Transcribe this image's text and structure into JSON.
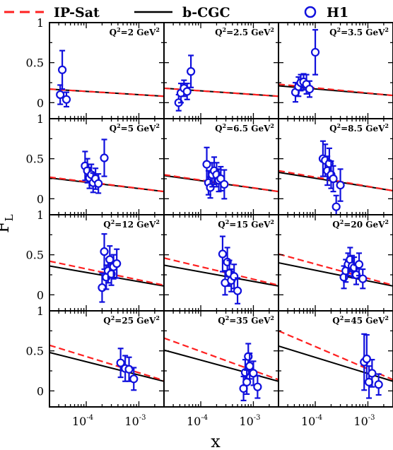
{
  "legend": {
    "ipsat": "IP-Sat",
    "bcgc": "b-CGC",
    "h1": "H1"
  },
  "colors": {
    "ipsat": "#ff2020",
    "bcgc": "#000000",
    "h1": "#1010dd"
  },
  "axes": {
    "ylabel_main": "F",
    "ylabel_sub": "L",
    "xlabel": "x",
    "y_ticks": [
      "0",
      "0.5",
      "1"
    ],
    "x_tick_base": "10",
    "x_tick_exps": [
      "-4",
      "-3"
    ]
  },
  "chart_data": {
    "type": "scatter",
    "layout": "grid 4 rows x 3 columns",
    "x_scale": "log",
    "xlim": [
      2e-05,
      0.003
    ],
    "ylim": [
      -0.2,
      1.0
    ],
    "panels": [
      {
        "q2_label": "Q",
        "q2_value": "=2 GeV",
        "Q2": 2,
        "ipsat": [
          [
            2e-05,
            0.17
          ],
          [
            0.003,
            0.08
          ]
        ],
        "bcgc": [
          [
            2e-05,
            0.17
          ],
          [
            0.003,
            0.08
          ]
        ],
        "h1": [
          [
            3.2e-05,
            0.1,
            0.12
          ],
          [
            3.5e-05,
            0.41,
            0.24
          ],
          [
            4.2e-05,
            0.04,
            0.09
          ]
        ]
      },
      {
        "q2_label": "Q",
        "q2_value": "=2.5 GeV",
        "Q2": 2.5,
        "ipsat": [
          [
            2e-05,
            0.18
          ],
          [
            0.003,
            0.08
          ]
        ],
        "bcgc": [
          [
            2e-05,
            0.18
          ],
          [
            0.003,
            0.08
          ]
        ],
        "h1": [
          [
            3.8e-05,
            0.0,
            0.1
          ],
          [
            4.2e-05,
            0.12,
            0.12
          ],
          [
            4.8e-05,
            0.18,
            0.1
          ],
          [
            5.5e-05,
            0.14,
            0.1
          ],
          [
            6.5e-05,
            0.39,
            0.2
          ]
        ]
      },
      {
        "q2_label": "Q",
        "q2_value": "=3.5 GeV",
        "Q2": 3.5,
        "ipsat": [
          [
            2e-05,
            0.23
          ],
          [
            0.003,
            0.09
          ]
        ],
        "bcgc": [
          [
            2e-05,
            0.21
          ],
          [
            0.003,
            0.09
          ]
        ],
        "h1": [
          [
            4.2e-05,
            0.13,
            0.12
          ],
          [
            4.8e-05,
            0.2,
            0.12
          ],
          [
            5.3e-05,
            0.25,
            0.1
          ],
          [
            6e-05,
            0.26,
            0.1
          ],
          [
            6.8e-05,
            0.23,
            0.12
          ],
          [
            7.8e-05,
            0.17,
            0.1
          ],
          [
            0.0001,
            0.63,
            0.28
          ]
        ]
      },
      {
        "q2_label": "Q",
        "q2_value": "=5 GeV",
        "Q2": 5,
        "ipsat": [
          [
            2e-05,
            0.27
          ],
          [
            0.003,
            0.09
          ]
        ],
        "bcgc": [
          [
            2e-05,
            0.26
          ],
          [
            0.003,
            0.09
          ]
        ],
        "h1": [
          [
            9.5e-05,
            0.41,
            0.18
          ],
          [
            0.000105,
            0.35,
            0.15
          ],
          [
            0.000115,
            0.26,
            0.13
          ],
          [
            0.000125,
            0.3,
            0.13
          ],
          [
            0.000135,
            0.2,
            0.12
          ],
          [
            0.00015,
            0.25,
            0.13
          ],
          [
            0.00017,
            0.19,
            0.12
          ],
          [
            0.00022,
            0.51,
            0.23
          ]
        ]
      },
      {
        "q2_label": "Q",
        "q2_value": "=6.5 GeV",
        "Q2": 6.5,
        "ipsat": [
          [
            2e-05,
            0.3
          ],
          [
            0.003,
            0.09
          ]
        ],
        "bcgc": [
          [
            2e-05,
            0.29
          ],
          [
            0.003,
            0.09
          ]
        ],
        "h1": [
          [
            0.00013,
            0.43,
            0.21
          ],
          [
            0.00014,
            0.2,
            0.15
          ],
          [
            0.000152,
            0.14,
            0.13
          ],
          [
            0.000165,
            0.3,
            0.15
          ],
          [
            0.00018,
            0.35,
            0.17
          ],
          [
            0.0002,
            0.3,
            0.15
          ],
          [
            0.00022,
            0.23,
            0.14
          ],
          [
            0.00024,
            0.25,
            0.15
          ],
          [
            0.00028,
            0.18,
            0.18
          ]
        ]
      },
      {
        "q2_label": "Q",
        "q2_value": "=8.5 GeV",
        "Q2": 8.5,
        "ipsat": [
          [
            2e-05,
            0.35
          ],
          [
            0.003,
            0.1
          ]
        ],
        "bcgc": [
          [
            2e-05,
            0.33
          ],
          [
            0.003,
            0.1
          ]
        ],
        "h1": [
          [
            0.00014,
            0.5,
            0.22
          ],
          [
            0.000155,
            0.48,
            0.2
          ],
          [
            0.00017,
            0.35,
            0.18
          ],
          [
            0.000185,
            0.44,
            0.19
          ],
          [
            0.0002,
            0.3,
            0.17
          ],
          [
            0.00022,
            0.25,
            0.16
          ],
          [
            0.00025,
            -0.1,
            0.14
          ],
          [
            0.0003,
            0.17,
            0.2
          ]
        ]
      },
      {
        "q2_label": "Q",
        "q2_value": "=12 GeV",
        "Q2": 12,
        "ipsat": [
          [
            2e-05,
            0.42
          ],
          [
            0.003,
            0.12
          ]
        ],
        "bcgc": [
          [
            2e-05,
            0.36
          ],
          [
            0.003,
            0.11
          ]
        ],
        "h1": [
          [
            0.0002,
            0.09,
            0.18
          ],
          [
            0.00022,
            0.54,
            0.22
          ],
          [
            0.00024,
            0.22,
            0.15
          ],
          [
            0.00026,
            0.3,
            0.15
          ],
          [
            0.00028,
            0.44,
            0.17
          ],
          [
            0.0003,
            0.26,
            0.14
          ],
          [
            0.00033,
            0.35,
            0.15
          ],
          [
            0.00038,
            0.39,
            0.18
          ]
        ]
      },
      {
        "q2_label": "Q",
        "q2_value": "=15 GeV",
        "Q2": 15,
        "ipsat": [
          [
            2e-05,
            0.46
          ],
          [
            0.003,
            0.12
          ]
        ],
        "bcgc": [
          [
            2e-05,
            0.37
          ],
          [
            0.003,
            0.11
          ]
        ],
        "h1": [
          [
            0.00026,
            0.51,
            0.22
          ],
          [
            0.00029,
            0.15,
            0.15
          ],
          [
            0.00032,
            0.41,
            0.18
          ],
          [
            0.00035,
            0.27,
            0.16
          ],
          [
            0.00038,
            0.18,
            0.14
          ],
          [
            0.00043,
            0.23,
            0.15
          ],
          [
            0.0005,
            0.05,
            0.16
          ]
        ]
      },
      {
        "q2_label": "Q",
        "q2_value": "=20 GeV",
        "Q2": 20,
        "ipsat": [
          [
            2e-05,
            0.51
          ],
          [
            0.003,
            0.12
          ]
        ],
        "bcgc": [
          [
            2e-05,
            0.4
          ],
          [
            0.003,
            0.11
          ]
        ],
        "h1": [
          [
            0.00035,
            0.22,
            0.14
          ],
          [
            0.00038,
            0.3,
            0.14
          ],
          [
            0.00042,
            0.38,
            0.14
          ],
          [
            0.00046,
            0.44,
            0.15
          ],
          [
            0.0005,
            0.36,
            0.13
          ],
          [
            0.00055,
            0.34,
            0.13
          ],
          [
            0.0006,
            0.25,
            0.12
          ],
          [
            0.00068,
            0.38,
            0.14
          ],
          [
            0.0008,
            0.2,
            0.12
          ]
        ]
      },
      {
        "q2_label": "Q",
        "q2_value": "=25 GeV",
        "Q2": 25,
        "ipsat": [
          [
            2e-05,
            0.57
          ],
          [
            0.003,
            0.13
          ]
        ],
        "bcgc": [
          [
            2e-05,
            0.48
          ],
          [
            0.003,
            0.12
          ]
        ],
        "h1": [
          [
            0.00045,
            0.35,
            0.18
          ],
          [
            0.00055,
            0.28,
            0.16
          ],
          [
            0.00065,
            0.27,
            0.15
          ],
          [
            0.0008,
            0.15,
            0.14
          ]
        ]
      },
      {
        "q2_label": "Q",
        "q2_value": "=35 GeV",
        "Q2": 35,
        "ipsat": [
          [
            2e-05,
            0.66
          ],
          [
            0.003,
            0.14
          ]
        ],
        "bcgc": [
          [
            2e-05,
            0.51
          ],
          [
            0.003,
            0.12
          ]
        ],
        "h1": [
          [
            0.00065,
            0.03,
            0.15
          ],
          [
            0.0007,
            0.23,
            0.16
          ],
          [
            0.00075,
            0.11,
            0.15
          ],
          [
            0.0008,
            0.43,
            0.16
          ],
          [
            0.00085,
            0.31,
            0.16
          ],
          [
            0.001,
            0.22,
            0.15
          ],
          [
            0.0012,
            0.05,
            0.14
          ]
        ]
      },
      {
        "q2_label": "Q",
        "q2_value": "=45 GeV",
        "Q2": 45,
        "ipsat": [
          [
            2e-05,
            0.75
          ],
          [
            0.003,
            0.14
          ]
        ],
        "bcgc": [
          [
            2e-05,
            0.56
          ],
          [
            0.003,
            0.12
          ]
        ],
        "h1": [
          [
            0.00085,
            0.36,
            0.35
          ],
          [
            0.00095,
            0.4,
            0.3
          ],
          [
            0.00105,
            0.11,
            0.2
          ],
          [
            0.0012,
            0.22,
            0.17
          ],
          [
            0.0016,
            0.08,
            0.13
          ]
        ]
      }
    ]
  }
}
